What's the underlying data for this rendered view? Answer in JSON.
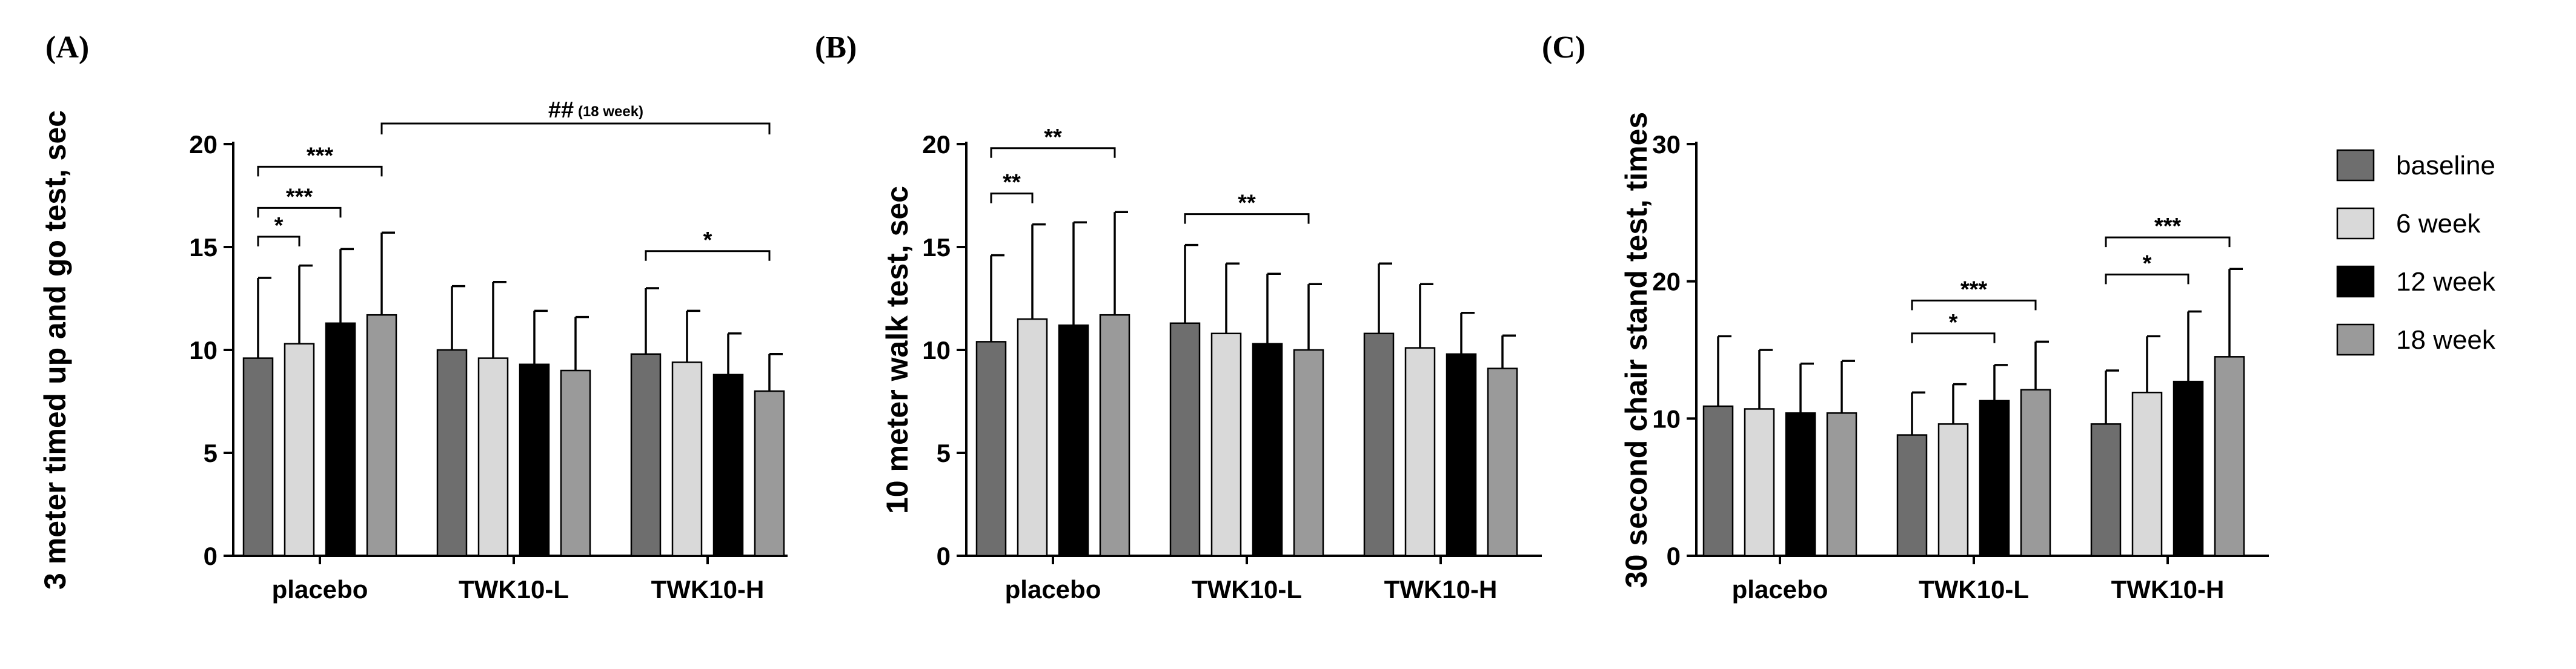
{
  "legend": {
    "entries": [
      {
        "label": "baseline",
        "color": "#6e6e6e"
      },
      {
        "label": "6 week",
        "color": "#d9d9d9"
      },
      {
        "label": "12 week",
        "color": "#000000"
      },
      {
        "label": "18 week",
        "color": "#9a9a9a"
      }
    ]
  },
  "chart_data": [
    {
      "panel": "(A)",
      "type": "bar",
      "ylabel": "3 meter timed up and go test, sec",
      "ylim": [
        0,
        20
      ],
      "yticks": [
        0,
        5,
        10,
        15,
        20
      ],
      "categories": [
        "placebo",
        "TWK10-L",
        "TWK10-H"
      ],
      "series": [
        {
          "name": "baseline",
          "values": [
            9.6,
            10.0,
            9.8
          ],
          "errors": [
            3.9,
            3.1,
            3.2
          ]
        },
        {
          "name": "6 week",
          "values": [
            10.3,
            9.6,
            9.4
          ],
          "errors": [
            3.8,
            3.7,
            2.5
          ]
        },
        {
          "name": "12 week",
          "values": [
            11.3,
            9.3,
            8.8
          ],
          "errors": [
            3.6,
            2.6,
            2.0
          ]
        },
        {
          "name": "18 week",
          "values": [
            11.7,
            9.0,
            8.0
          ],
          "errors": [
            4.0,
            2.6,
            1.8
          ]
        }
      ],
      "significance": [
        {
          "label": "*",
          "group": 0,
          "from": 0,
          "to": 1,
          "y": 15.5
        },
        {
          "label": "***",
          "group": 0,
          "from": 0,
          "to": 2,
          "y": 16.9
        },
        {
          "label": "***",
          "group": 0,
          "from": 0,
          "to": 3,
          "y": 18.9
        },
        {
          "label": "*",
          "group": 2,
          "from": 0,
          "to": 3,
          "y": 14.8
        }
      ],
      "top_bracket": {
        "label": "##",
        "note": "(18 week)",
        "from_group": 0,
        "from_bar": 3,
        "to_group": 2,
        "to_bar": 3,
        "y": 21.0
      }
    },
    {
      "panel": "(B)",
      "type": "bar",
      "ylabel": "10 meter walk test, sec",
      "ylim": [
        0,
        20
      ],
      "yticks": [
        0,
        5,
        10,
        15,
        20
      ],
      "categories": [
        "placebo",
        "TWK10-L",
        "TWK10-H"
      ],
      "series": [
        {
          "name": "baseline",
          "values": [
            10.4,
            11.3,
            10.8
          ],
          "errors": [
            4.2,
            3.8,
            3.4
          ]
        },
        {
          "name": "6 week",
          "values": [
            11.5,
            10.8,
            10.1
          ],
          "errors": [
            4.6,
            3.4,
            3.1
          ]
        },
        {
          "name": "12 week",
          "values": [
            11.2,
            10.3,
            9.8
          ],
          "errors": [
            5.0,
            3.4,
            2.0
          ]
        },
        {
          "name": "18 week",
          "values": [
            11.7,
            10.0,
            9.1
          ],
          "errors": [
            5.0,
            3.2,
            1.6
          ]
        }
      ],
      "significance": [
        {
          "label": "**",
          "group": 0,
          "from": 0,
          "to": 1,
          "y": 17.6
        },
        {
          "label": "**",
          "group": 0,
          "from": 0,
          "to": 3,
          "y": 19.8
        },
        {
          "label": "**",
          "group": 1,
          "from": 0,
          "to": 3,
          "y": 16.6
        }
      ]
    },
    {
      "panel": "(C)",
      "type": "bar",
      "ylabel": "30 second chair stand test, times",
      "ylim": [
        0,
        30
      ],
      "yticks": [
        0,
        10,
        20,
        30
      ],
      "categories": [
        "placebo",
        "TWK10-L",
        "TWK10-H"
      ],
      "series": [
        {
          "name": "baseline",
          "values": [
            10.9,
            8.8,
            9.6
          ],
          "errors": [
            5.1,
            3.1,
            3.9
          ]
        },
        {
          "name": "6 week",
          "values": [
            10.7,
            9.6,
            11.9
          ],
          "errors": [
            4.3,
            2.9,
            4.1
          ]
        },
        {
          "name": "12 week",
          "values": [
            10.4,
            11.3,
            12.7
          ],
          "errors": [
            3.6,
            2.6,
            5.1
          ]
        },
        {
          "name": "18 week",
          "values": [
            10.4,
            12.1,
            14.5
          ],
          "errors": [
            3.8,
            3.5,
            6.4
          ]
        }
      ],
      "significance": [
        {
          "label": "*",
          "group": 1,
          "from": 0,
          "to": 2,
          "y": 16.2
        },
        {
          "label": "***",
          "group": 1,
          "from": 0,
          "to": 3,
          "y": 18.6
        },
        {
          "label": "*",
          "group": 2,
          "from": 0,
          "to": 2,
          "y": 20.5
        },
        {
          "label": "***",
          "group": 2,
          "from": 0,
          "to": 3,
          "y": 23.2
        }
      ]
    }
  ]
}
